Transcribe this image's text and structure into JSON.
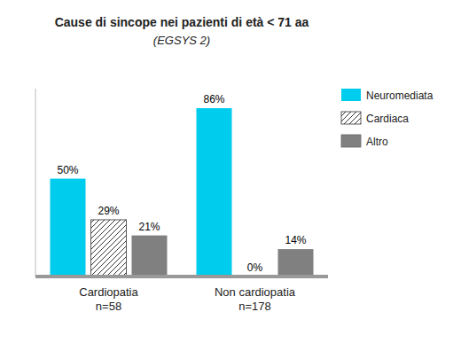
{
  "chart_data": {
    "type": "bar",
    "title": "Cause di sincope nei pazienti di età < 71 aa",
    "subtitle": "(EGSYS 2)",
    "categories": [
      "Cardiopatia\nn=58",
      "Non cardiopatia\nn=178"
    ],
    "series": [
      {
        "name": "Neuromediata",
        "color": "#00CCEE",
        "values": [
          50,
          86
        ],
        "value_labels": [
          "50%",
          "86%"
        ]
      },
      {
        "name": "Cardiaca",
        "color": "#ffffff",
        "values": [
          29,
          0
        ],
        "value_labels": [
          "29%",
          "0%"
        ]
      },
      {
        "name": "Altro",
        "color": "#808080",
        "values": [
          21,
          14
        ],
        "value_labels": [
          "21%",
          "14%"
        ]
      }
    ],
    "ylim": [
      0,
      96
    ],
    "data_labels": true,
    "tick_labels": "x",
    "legend": "upper right",
    "grid": false
  }
}
